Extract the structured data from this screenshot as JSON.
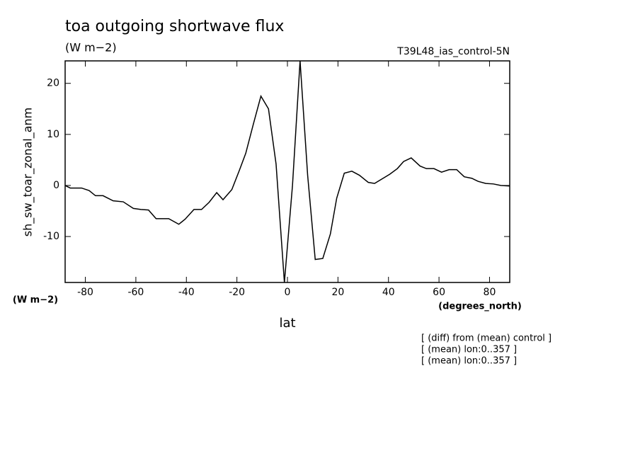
{
  "chart_data": {
    "type": "line",
    "title": "toa outgoing shortwave flux",
    "subtitle": "(W m−2)",
    "experiment": "T39L48_ias_control-5N",
    "y_label": "sh_sw_toar_zonal_anm",
    "y_units": "(W m−2)",
    "x_units": "(degrees_north)",
    "x_label": "lat",
    "notes": [
      "[ (diff) from (mean) control ]",
      "[ (mean) lon:0..357 ]",
      "[ (mean) lon:0..357 ]"
    ],
    "x": [
      -88,
      -86,
      -81.5,
      -78.5,
      -76,
      -73,
      -69,
      -65,
      -61,
      -58,
      -55,
      -52,
      -50,
      -47,
      -43,
      -40.5,
      -37,
      -34,
      -31,
      -28,
      -25.5,
      -22,
      -19,
      -16.5,
      -13.5,
      -10.5,
      -7.5,
      -4.5,
      -1.2,
      2,
      5,
      8,
      11,
      14,
      17,
      19.5,
      22.5,
      25.5,
      28.5,
      32,
      34.5,
      37.5,
      40.5,
      43.5,
      46,
      49,
      52.5,
      55,
      58,
      61,
      64,
      67,
      70,
      73,
      75.5,
      78.5,
      81.5,
      84.5,
      88
    ],
    "series": [
      {
        "color": "#000000",
        "values": [
          0,
          -0.5,
          -0.5,
          -1,
          -2,
          -2,
          -3,
          -3.2,
          -4.5,
          -4.7,
          -4.8,
          -6.5,
          -6.5,
          -6.5,
          -7.6,
          -6.6,
          -4.7,
          -4.7,
          -3.3,
          -1.4,
          -2.8,
          -0.8,
          3,
          6.3,
          12,
          17.5,
          15,
          4.2,
          -19,
          0,
          24.4,
          2,
          -14.5,
          -14.3,
          -9.5,
          -2.5,
          2.4,
          2.8,
          2,
          0.6,
          0.4,
          1.3,
          2.2,
          3.3,
          4.7,
          5.4,
          3.8,
          3.3,
          3.3,
          2.6,
          3.1,
          3.1,
          1.7,
          1.4,
          0.8,
          0.4,
          0.3,
          0,
          -0.1
        ]
      }
    ],
    "xlim": [
      -88,
      88
    ],
    "xticks": [
      -80,
      -60,
      -40,
      -20,
      0,
      20,
      40,
      60,
      80
    ],
    "ylim": [
      -19,
      24.4
    ],
    "yticks": [
      -10,
      0,
      10,
      20
    ]
  }
}
